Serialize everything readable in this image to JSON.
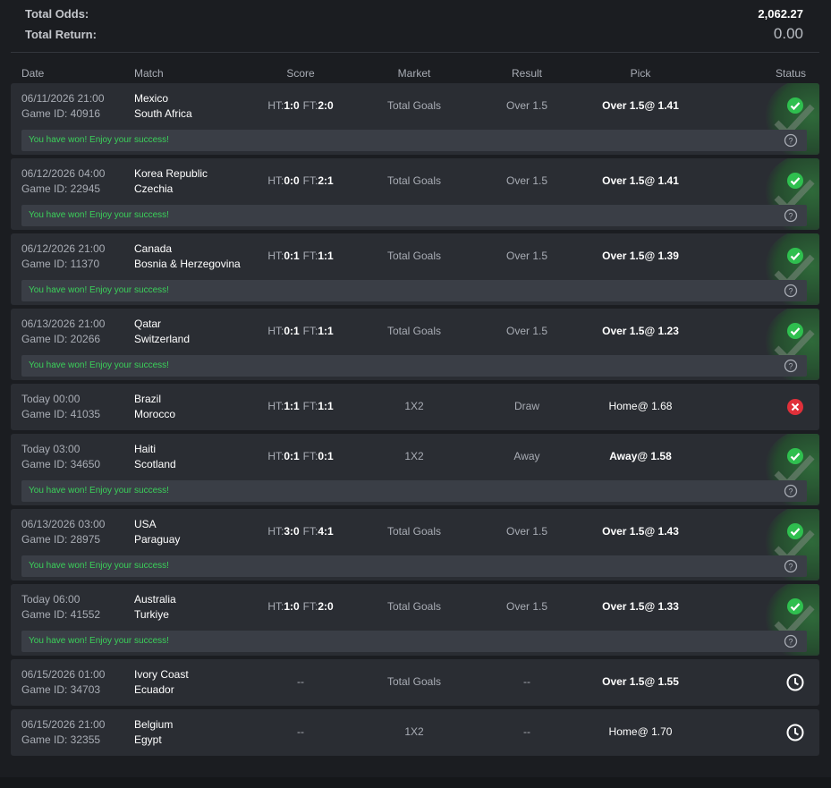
{
  "summary": {
    "total_odds_label": "Total Odds:",
    "total_odds": "2,062.27",
    "total_return_label": "Total Return:",
    "total_return": "0.00"
  },
  "table": {
    "headers": [
      "Date",
      "Match",
      "Score",
      "Market",
      "Result",
      "Pick",
      "Status"
    ],
    "score_labels": {
      "ht": "HT:",
      "ft": "FT:"
    },
    "rows": [
      {
        "date": "06/11/2026 21:00",
        "game_id": "Game ID: 40916",
        "home": "Mexico",
        "away": "South Africa",
        "ht": "1:0",
        "ft": "2:0",
        "market": "Total Goals",
        "result": "Over 1.5",
        "pick": "Over 1.5@ 1.41",
        "status": "won",
        "message": "You have won! Enjoy your success!"
      },
      {
        "date": "06/12/2026 04:00",
        "game_id": "Game ID: 22945",
        "home": "Korea Republic",
        "away": "Czechia",
        "ht": "0:0",
        "ft": "2:1",
        "market": "Total Goals",
        "result": "Over 1.5",
        "pick": "Over 1.5@ 1.41",
        "status": "won",
        "message": "You have won! Enjoy your success!"
      },
      {
        "date": "06/12/2026 21:00",
        "game_id": "Game ID: 11370",
        "home": "Canada",
        "away": "Bosnia & Herzegovina",
        "ht": "0:1",
        "ft": "1:1",
        "market": "Total Goals",
        "result": "Over 1.5",
        "pick": "Over 1.5@ 1.39",
        "status": "won",
        "message": "You have won! Enjoy your success!"
      },
      {
        "date": "06/13/2026 21:00",
        "game_id": "Game ID: 20266",
        "home": "Qatar",
        "away": "Switzerland",
        "ht": "0:1",
        "ft": "1:1",
        "market": "Total Goals",
        "result": "Over 1.5",
        "pick": "Over 1.5@ 1.23",
        "status": "won",
        "message": "You have won! Enjoy your success!"
      },
      {
        "date": "Today 00:00",
        "game_id": "Game ID: 41035",
        "home": "Brazil",
        "away": "Morocco",
        "ht": "1:1",
        "ft": "1:1",
        "market": "1X2",
        "result": "Draw",
        "pick": "Home@ 1.68",
        "status": "lost"
      },
      {
        "date": "Today 03:00",
        "game_id": "Game ID: 34650",
        "home": "Haiti",
        "away": "Scotland",
        "ht": "0:1",
        "ft": "0:1",
        "market": "1X2",
        "result": "Away",
        "pick": "Away@ 1.58",
        "status": "won",
        "message": "You have won! Enjoy your success!"
      },
      {
        "date": "06/13/2026 03:00",
        "game_id": "Game ID: 28975",
        "home": "USA",
        "away": "Paraguay",
        "ht": "3:0",
        "ft": "4:1",
        "market": "Total Goals",
        "result": "Over 1.5",
        "pick": "Over 1.5@ 1.43",
        "status": "won",
        "message": "You have won! Enjoy your success!"
      },
      {
        "date": "Today 06:00",
        "game_id": "Game ID: 41552",
        "home": "Australia",
        "away": "Turkiye",
        "ht": "1:0",
        "ft": "2:0",
        "market": "Total Goals",
        "result": "Over 1.5",
        "pick": "Over 1.5@ 1.33",
        "status": "won",
        "message": "You have won! Enjoy your success!"
      },
      {
        "date": "06/15/2026 01:00",
        "game_id": "Game ID: 34703",
        "home": "Ivory Coast",
        "away": "Ecuador",
        "score": "--",
        "market": "Total Goals",
        "result": "--",
        "pick": "Over 1.5@ 1.55",
        "status": "pending"
      },
      {
        "date": "06/15/2026 21:00",
        "game_id": "Game ID: 32355",
        "home": "Belgium",
        "away": "Egypt",
        "score": "--",
        "market": "1X2",
        "result": "--",
        "pick": "Home@ 1.70",
        "status": "pending"
      }
    ]
  }
}
